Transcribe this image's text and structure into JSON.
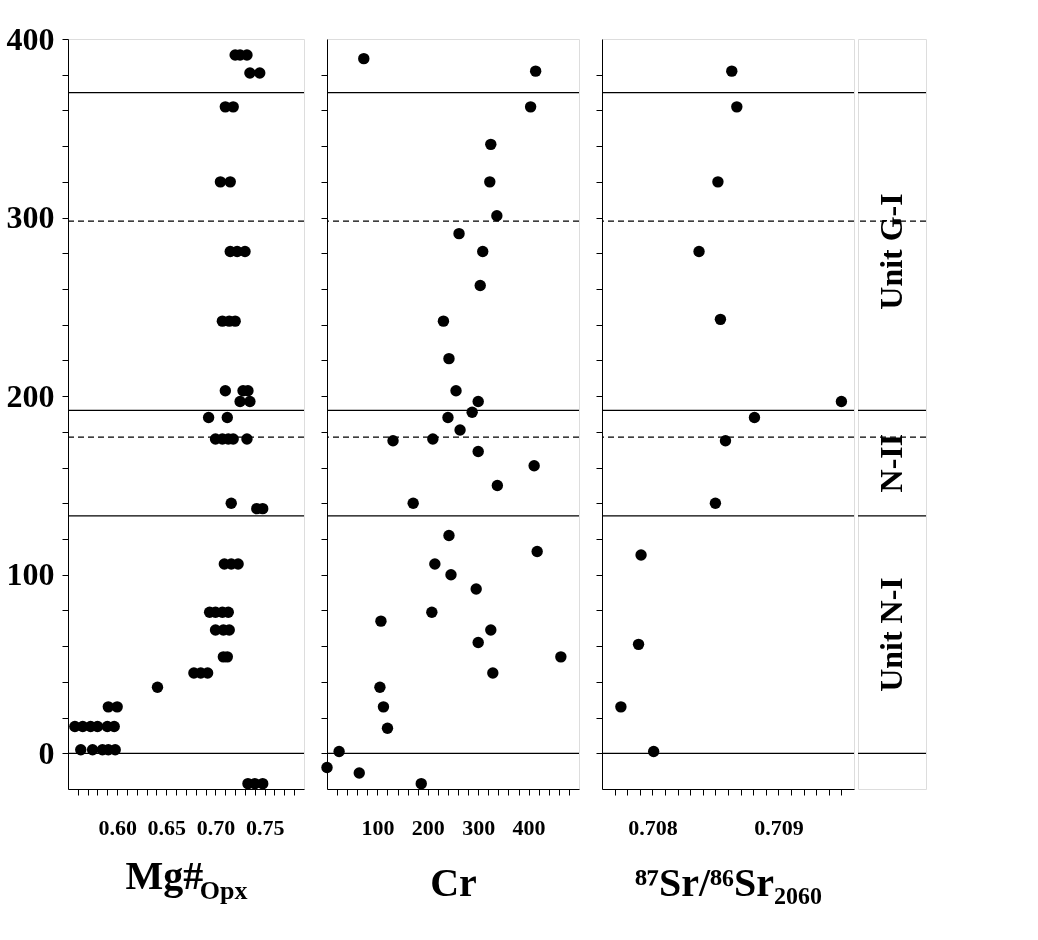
{
  "chart_data": [
    {
      "type": "scatter",
      "xlabel": "Mg#$_{Opx}$",
      "marker": "circle",
      "grid": false,
      "x": [
        0.72,
        0.725,
        0.732,
        0.735,
        0.745,
        0.71,
        0.718,
        0.705,
        0.715,
        0.715,
        0.722,
        0.73,
        0.707,
        0.714,
        0.72,
        0.71,
        0.728,
        0.733,
        0.725,
        0.735,
        0.693,
        0.712,
        0.7,
        0.707,
        0.713,
        0.718,
        0.732,
        0.716,
        0.742,
        0.748,
        0.709,
        0.716,
        0.723,
        0.694,
        0.7,
        0.707,
        0.713,
        0.7,
        0.708,
        0.714,
        0.708,
        0.712,
        0.678,
        0.685,
        0.692,
        0.641,
        0.591,
        0.6,
        0.557,
        0.565,
        0.573,
        0.58,
        0.59,
        0.597,
        0.563,
        0.575,
        0.585,
        0.591,
        0.598,
        0.733,
        0.74,
        0.748
      ],
      "series": [
        {
          "color": "#000000",
          "values": [
            391,
            391,
            391,
            381,
            381,
            362,
            362,
            320,
            320,
            281,
            281,
            281,
            242,
            242,
            242,
            203,
            203,
            203,
            197,
            197,
            188,
            188,
            176,
            176,
            176,
            176,
            176,
            140,
            137,
            137,
            106,
            106,
            106,
            79,
            79,
            79,
            79,
            69,
            69,
            69,
            54,
            54,
            45,
            45,
            45,
            37,
            26,
            26,
            15,
            15,
            15,
            15,
            15,
            15,
            2,
            2,
            2,
            2,
            2,
            -17,
            -17,
            -17
          ]
        }
      ],
      "xlim": [
        0.55,
        0.79
      ],
      "ylim": [
        -20,
        400
      ],
      "xticks": [
        {
          "value": 0.56,
          "label": null
        },
        {
          "value": 0.57,
          "label": null
        },
        {
          "value": 0.58,
          "label": null
        },
        {
          "value": 0.59,
          "label": null
        },
        {
          "value": 0.6,
          "label": "0.60"
        },
        {
          "value": 0.61,
          "label": null
        },
        {
          "value": 0.62,
          "label": null
        },
        {
          "value": 0.63,
          "label": null
        },
        {
          "value": 0.64,
          "label": null
        },
        {
          "value": 0.65,
          "label": "0.65"
        },
        {
          "value": 0.66,
          "label": null
        },
        {
          "value": 0.67,
          "label": null
        },
        {
          "value": 0.68,
          "label": null
        },
        {
          "value": 0.69,
          "label": null
        },
        {
          "value": 0.7,
          "label": "0.70"
        },
        {
          "value": 0.71,
          "label": null
        },
        {
          "value": 0.72,
          "label": null
        },
        {
          "value": 0.73,
          "label": null
        },
        {
          "value": 0.74,
          "label": null
        },
        {
          "value": 0.75,
          "label": "0.75"
        },
        {
          "value": 0.76,
          "label": null
        },
        {
          "value": 0.77,
          "label": null
        },
        {
          "value": 0.78,
          "label": null
        }
      ],
      "yticks": [
        0,
        {
          "value": 20,
          "label": null
        },
        {
          "value": 40,
          "label": null
        },
        {
          "value": 60,
          "label": null
        },
        {
          "value": 80,
          "label": null
        },
        100,
        {
          "value": 120,
          "label": null
        },
        {
          "value": 140,
          "label": null
        },
        {
          "value": 160,
          "label": null
        },
        {
          "value": 180,
          "label": null
        },
        200,
        {
          "value": 220,
          "label": null
        },
        {
          "value": 240,
          "label": null
        },
        {
          "value": 260,
          "label": null
        },
        {
          "value": 280,
          "label": null
        },
        300,
        {
          "value": 320,
          "label": null
        },
        {
          "value": 340,
          "label": null
        },
        {
          "value": 360,
          "label": null
        },
        {
          "value": 380,
          "label": null
        },
        400
      ],
      "ref_lines": [
        {
          "axis": "y",
          "value": 0,
          "line_style": "solid"
        },
        {
          "axis": "y",
          "value": 133,
          "line_style": "solid"
        },
        {
          "axis": "y",
          "value": 177,
          "line_style": "dashed"
        },
        {
          "axis": "y",
          "value": 192,
          "line_style": "solid"
        },
        {
          "axis": "y",
          "value": 298,
          "line_style": "dashed"
        },
        {
          "axis": "y",
          "value": 370,
          "line_style": "solid"
        }
      ]
    },
    {
      "type": "scatter",
      "xlabel": "Cr",
      "marker": "circle",
      "grid": false,
      "tick_labels": "x",
      "x": [
        73,
        414,
        404,
        325,
        323,
        337,
        262,
        309,
        304,
        231,
        242,
        256,
        300,
        288,
        240,
        264,
        131,
        210,
        300,
        411,
        338,
        171,
        242,
        417,
        214,
        246,
        296,
        107,
        208,
        325,
        300,
        464,
        329,
        105,
        112,
        120,
        24,
        0,
        64,
        187
      ],
      "series": [
        {
          "color": "#000000",
          "values": [
            389,
            382,
            362,
            341,
            320,
            301,
            291,
            281,
            262,
            242,
            221,
            203,
            197,
            191,
            188,
            181,
            175,
            176,
            169,
            161,
            150,
            140,
            122,
            113,
            106,
            100,
            92,
            74,
            79,
            69,
            62,
            54,
            45,
            37,
            26,
            14,
            1,
            -8,
            -11,
            -17
          ]
        }
      ],
      "xlim": [
        0,
        500
      ],
      "ylim": [
        -20,
        400
      ],
      "xticks": [
        {
          "value": 20,
          "label": null
        },
        {
          "value": 40,
          "label": null
        },
        {
          "value": 60,
          "label": null
        },
        {
          "value": 80,
          "label": null
        },
        100,
        {
          "value": 120,
          "label": null
        },
        {
          "value": 140,
          "label": null
        },
        {
          "value": 160,
          "label": null
        },
        {
          "value": 180,
          "label": null
        },
        200,
        {
          "value": 220,
          "label": null
        },
        {
          "value": 240,
          "label": null
        },
        {
          "value": 260,
          "label": null
        },
        {
          "value": 280,
          "label": null
        },
        300,
        {
          "value": 320,
          "label": null
        },
        {
          "value": 340,
          "label": null
        },
        {
          "value": 360,
          "label": null
        },
        {
          "value": 380,
          "label": null
        },
        400,
        {
          "value": 420,
          "label": null
        },
        {
          "value": 440,
          "label": null
        },
        {
          "value": 460,
          "label": null
        },
        {
          "value": 480,
          "label": null
        }
      ],
      "yticks": [
        {
          "value": 0,
          "label": null
        },
        {
          "value": 20,
          "label": null
        },
        {
          "value": 40,
          "label": null
        },
        {
          "value": 60,
          "label": null
        },
        {
          "value": 80,
          "label": null
        },
        {
          "value": 100,
          "label": null
        },
        {
          "value": 120,
          "label": null
        },
        {
          "value": 140,
          "label": null
        },
        {
          "value": 160,
          "label": null
        },
        {
          "value": 180,
          "label": null
        },
        {
          "value": 200,
          "label": null
        },
        {
          "value": 220,
          "label": null
        },
        {
          "value": 240,
          "label": null
        },
        {
          "value": 260,
          "label": null
        },
        {
          "value": 280,
          "label": null
        },
        {
          "value": 300,
          "label": null
        },
        {
          "value": 320,
          "label": null
        },
        {
          "value": 340,
          "label": null
        },
        {
          "value": 360,
          "label": null
        },
        {
          "value": 380,
          "label": null
        }
      ],
      "ref_lines": [
        {
          "axis": "y",
          "value": 0,
          "line_style": "solid"
        },
        {
          "axis": "y",
          "value": 133,
          "line_style": "solid"
        },
        {
          "axis": "y",
          "value": 177,
          "line_style": "dashed"
        },
        {
          "axis": "y",
          "value": 192,
          "line_style": "solid"
        },
        {
          "axis": "y",
          "value": 298,
          "line_style": "dashed"
        },
        {
          "axis": "y",
          "value": 370,
          "line_style": "solid"
        }
      ]
    },
    {
      "type": "scatter",
      "xlabel": "⁸⁷Sr/⁸⁶Sr₂₀₆₀",
      "marker": "circle",
      "grid": false,
      "tick_labels": "x",
      "x": [
        0.70863,
        0.70867,
        0.70852,
        0.70837,
        0.70854,
        0.7095,
        0.70881,
        0.70858,
        0.7085,
        0.70791,
        0.70789,
        0.70775,
        0.70801
      ],
      "series": [
        {
          "color": "#000000",
          "values": [
            382,
            362,
            320,
            281,
            243,
            197,
            188,
            175,
            140,
            111,
            61,
            26,
            1
          ]
        }
      ],
      "xlim": [
        0.7076,
        0.7096
      ],
      "ylim": [
        -20,
        400
      ],
      "xticks": [
        {
          "value": 0.7077,
          "label": null
        },
        {
          "value": 0.7078,
          "label": null
        },
        {
          "value": 0.7079,
          "label": null
        },
        0.708,
        {
          "value": 0.7081,
          "label": null
        },
        {
          "value": 0.7082,
          "label": null
        },
        {
          "value": 0.7083,
          "label": null
        },
        {
          "value": 0.7084,
          "label": null
        },
        {
          "value": 0.7085,
          "label": null
        },
        {
          "value": 0.7086,
          "label": null
        },
        {
          "value": 0.7087,
          "label": null
        },
        {
          "value": 0.7088,
          "label": null
        },
        {
          "value": 0.7089,
          "label": null
        },
        0.709,
        {
          "value": 0.7091,
          "label": null
        },
        {
          "value": 0.7092,
          "label": null
        },
        {
          "value": 0.7093,
          "label": null
        },
        {
          "value": 0.7094,
          "label": null
        },
        {
          "value": 0.7095,
          "label": null
        }
      ],
      "yticks": [
        {
          "value": 0,
          "label": null
        },
        {
          "value": 20,
          "label": null
        },
        {
          "value": 40,
          "label": null
        },
        {
          "value": 60,
          "label": null
        },
        {
          "value": 80,
          "label": null
        },
        {
          "value": 100,
          "label": null
        },
        {
          "value": 120,
          "label": null
        },
        {
          "value": 140,
          "label": null
        },
        {
          "value": 160,
          "label": null
        },
        {
          "value": 180,
          "label": null
        },
        {
          "value": 200,
          "label": null
        },
        {
          "value": 220,
          "label": null
        },
        {
          "value": 240,
          "label": null
        },
        {
          "value": 260,
          "label": null
        },
        {
          "value": 280,
          "label": null
        },
        {
          "value": 300,
          "label": null
        },
        {
          "value": 320,
          "label": null
        },
        {
          "value": 340,
          "label": null
        },
        {
          "value": 360,
          "label": null
        },
        {
          "value": 380,
          "label": null
        }
      ],
      "ref_lines": [
        {
          "axis": "y",
          "value": 0,
          "line_style": "solid"
        },
        {
          "axis": "y",
          "value": 133,
          "line_style": "solid"
        },
        {
          "axis": "y",
          "value": 177,
          "line_style": "dashed"
        },
        {
          "axis": "y",
          "value": 192,
          "line_style": "solid"
        },
        {
          "axis": "y",
          "value": 298,
          "line_style": "dashed"
        },
        {
          "axis": "y",
          "value": 370,
          "line_style": "solid"
        }
      ],
      "annotations": [
        "Unit G-I",
        "N-II",
        "Unit N-I"
      ]
    }
  ]
}
